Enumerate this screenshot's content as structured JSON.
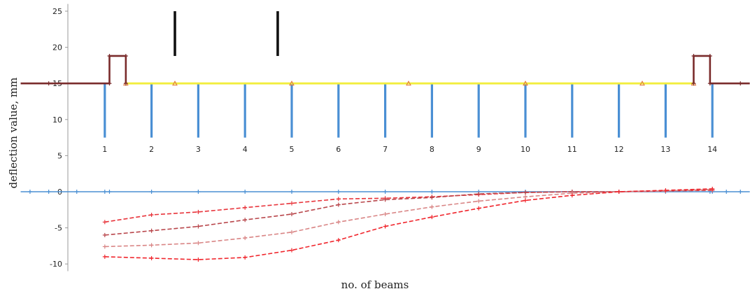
{
  "chart_data": {
    "type": "line",
    "xlabel": "no. of beams",
    "ylabel": "deflection value, mm",
    "ylim": [
      -11,
      26
    ],
    "xlim": [
      -0.8,
      14.8
    ],
    "yticks": [
      -10,
      -5,
      0,
      5,
      10,
      15,
      20,
      25
    ],
    "beam_labels": [
      "1",
      "2",
      "3",
      "4",
      "5",
      "6",
      "7",
      "8",
      "9",
      "10",
      "11",
      "12",
      "13",
      "14"
    ],
    "beams": {
      "x": [
        1,
        2,
        3,
        4,
        5,
        6,
        7,
        8,
        9,
        10,
        11,
        12,
        13,
        14
      ],
      "top": 15,
      "bottom": 7.5,
      "color": "#4a8fd4"
    },
    "deck": {
      "x_start": 1.45,
      "x_end": 13.6,
      "y": 15,
      "color": "#f2ee3c",
      "markers_x": [
        1.45,
        2.5,
        5,
        7.5,
        10,
        12.5,
        13.6
      ]
    },
    "supports": {
      "color": "#7a2b2b",
      "left": {
        "x": [
          -0.8,
          1.1,
          1.1,
          1.45,
          1.45
        ],
        "y": [
          15,
          15,
          18.8,
          18.8,
          15
        ]
      },
      "right": {
        "x": [
          13.6,
          13.6,
          13.95,
          13.95,
          14.8
        ],
        "y": [
          15,
          18.8,
          18.8,
          15,
          15
        ]
      },
      "markers_x": [
        -0.2,
        1.1,
        1.45,
        13.6,
        13.95,
        14.6
      ]
    },
    "loads": {
      "x": [
        2.5,
        4.7
      ],
      "top": 25,
      "bottom": 18.8,
      "color": "#111111"
    },
    "baseline": {
      "color": "#4a8fd4",
      "x": [
        -0.8,
        14.8
      ],
      "y": 0,
      "markers_x": [
        -0.6,
        -0.2,
        0.4,
        1,
        1.1,
        2,
        3,
        4,
        5,
        6,
        7,
        8,
        9,
        10,
        11,
        12,
        13,
        13.95,
        14,
        14.3,
        14.6
      ]
    },
    "series": [
      {
        "x": [
          1,
          2,
          3,
          4,
          5,
          6,
          7,
          8,
          9,
          10,
          11,
          12,
          13,
          14
        ],
        "values": [
          -4.2,
          -3.2,
          -2.8,
          -2.2,
          -1.6,
          -1.0,
          -0.9,
          -0.7,
          -0.4,
          -0.1,
          0.0,
          0.0,
          0.1,
          0.2
        ],
        "color": "#e8343b"
      },
      {
        "x": [
          1,
          2,
          3,
          4,
          5,
          6,
          7,
          8,
          9,
          10,
          11,
          12,
          13,
          14
        ],
        "values": [
          -6.0,
          -5.4,
          -4.8,
          -3.9,
          -3.1,
          -1.8,
          -1.1,
          -0.8,
          -0.3,
          -0.1,
          0.0,
          0.0,
          0.1,
          0.3
        ],
        "color": "#b8454a"
      },
      {
        "x": [
          1,
          2,
          3,
          4,
          5,
          6,
          7,
          8,
          9,
          10,
          11,
          12,
          13,
          14
        ],
        "values": [
          -7.6,
          -7.4,
          -7.1,
          -6.4,
          -5.6,
          -4.2,
          -3.1,
          -2.1,
          -1.3,
          -0.7,
          -0.2,
          0.0,
          0.1,
          0.3
        ],
        "color": "#d98585"
      },
      {
        "x": [
          1,
          2,
          3,
          4,
          5,
          6,
          7,
          8,
          9,
          10,
          11,
          12,
          13,
          14
        ],
        "values": [
          -9.0,
          -9.2,
          -9.4,
          -9.1,
          -8.1,
          -6.7,
          -4.8,
          -3.5,
          -2.3,
          -1.2,
          -0.5,
          0.0,
          0.2,
          0.4
        ],
        "color": "#f0252c"
      }
    ]
  }
}
